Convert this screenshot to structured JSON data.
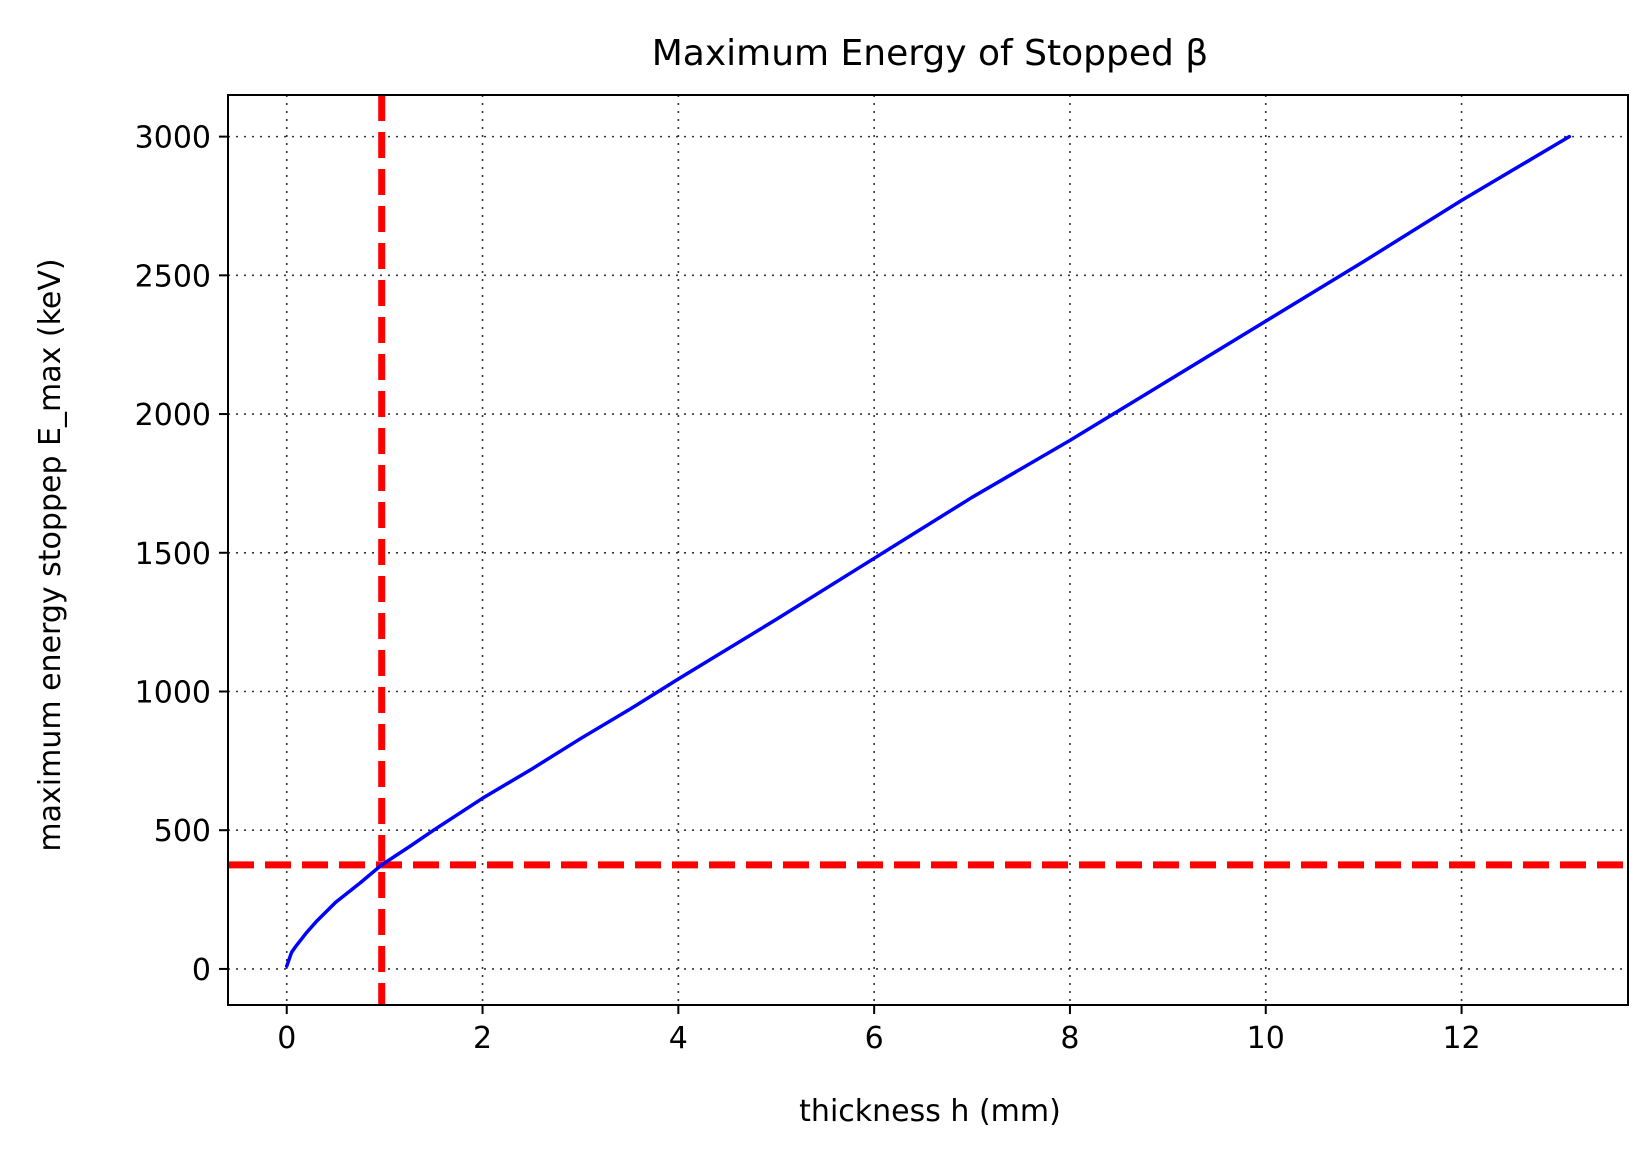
{
  "chart_data": {
    "type": "line",
    "title": "Maximum Energy of Stopped β",
    "xlabel": "thickness h (mm)",
    "ylabel": "maximum energy stoppep E_max (keV)",
    "xlim": [
      -0.6,
      13.7
    ],
    "ylim": [
      -130,
      3150
    ],
    "xticks": [
      0,
      2,
      4,
      6,
      8,
      10,
      12
    ],
    "yticks": [
      0,
      500,
      1000,
      1500,
      2000,
      2500,
      3000
    ],
    "grid": true,
    "grid_style": "dotted",
    "series": [
      {
        "color": "#0000ff",
        "x": [
          0.0,
          0.05,
          0.1,
          0.2,
          0.3,
          0.5,
          0.75,
          0.97,
          1.25,
          1.5,
          2.0,
          2.5,
          3.0,
          3.5,
          4.0,
          5.0,
          6.0,
          7.0,
          8.0,
          9.0,
          10.0,
          11.0,
          12.0,
          13.1
        ],
        "y": [
          10,
          60,
          85,
          130,
          170,
          240,
          310,
          375,
          440,
          500,
          615,
          720,
          830,
          935,
          1045,
          1260,
          1480,
          1700,
          1905,
          2120,
          2335,
          2550,
          2770,
          3000
        ]
      }
    ],
    "reference_lines": [
      {
        "orientation": "vertical",
        "x": 0.97,
        "color": "#ff0000",
        "style": "dashed"
      },
      {
        "orientation": "horizontal",
        "y": 375,
        "color": "#ff0000",
        "style": "dashed"
      }
    ]
  }
}
